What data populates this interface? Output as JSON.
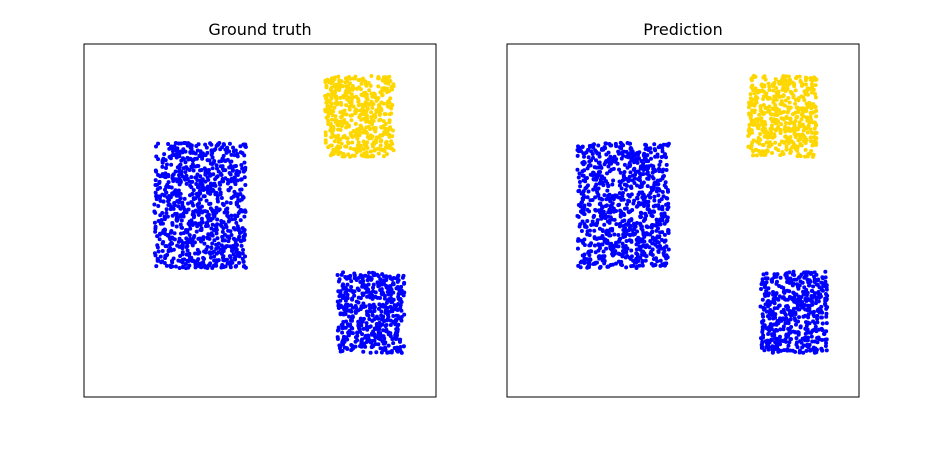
{
  "chart_data": [
    {
      "type": "scatter",
      "title": "Ground truth",
      "xlabel": "",
      "ylabel": "",
      "xlim": [
        0,
        1
      ],
      "ylim": [
        0,
        1
      ],
      "grid": false,
      "ticks_visible": false,
      "clusters": [
        {
          "color": "#0000ff",
          "x_range": [
            0.2,
            0.46
          ],
          "y_range": [
            0.365,
            0.72
          ],
          "count": 900
        },
        {
          "color": "#ffd700",
          "x_range": [
            0.685,
            0.88
          ],
          "y_range": [
            0.68,
            0.91
          ],
          "count": 500
        },
        {
          "color": "#0000ff",
          "x_range": [
            0.72,
            0.91
          ],
          "y_range": [
            0.125,
            0.355
          ],
          "count": 500
        }
      ]
    },
    {
      "type": "scatter",
      "title": "Prediction",
      "xlabel": "",
      "ylabel": "",
      "xlim": [
        0,
        1
      ],
      "ylim": [
        0,
        1
      ],
      "grid": false,
      "ticks_visible": false,
      "clusters": [
        {
          "color": "#0000ff",
          "x_range": [
            0.2,
            0.46
          ],
          "y_range": [
            0.365,
            0.72
          ],
          "count": 900
        },
        {
          "color": "#ffd700",
          "x_range": [
            0.685,
            0.88
          ],
          "y_range": [
            0.68,
            0.91
          ],
          "count": 500
        },
        {
          "color": "#0000ff",
          "x_range": [
            0.72,
            0.91
          ],
          "y_range": [
            0.125,
            0.355
          ],
          "count": 500
        }
      ]
    }
  ]
}
